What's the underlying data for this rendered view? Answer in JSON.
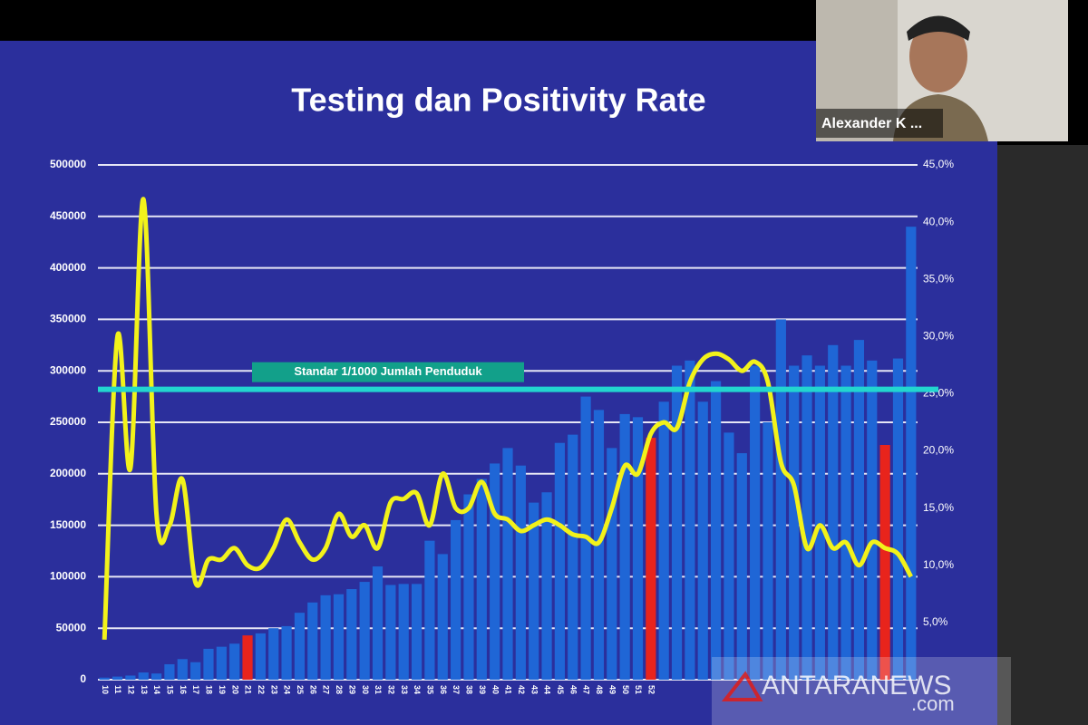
{
  "chart_data": {
    "type": "bar-line",
    "title": "Testing dan Positivity Rate",
    "categories": [
      "10",
      "11",
      "12",
      "13",
      "14",
      "15",
      "16",
      "17",
      "18",
      "19",
      "20",
      "21",
      "22",
      "23",
      "24",
      "25",
      "26",
      "27",
      "28",
      "29",
      "30",
      "31",
      "32",
      "33",
      "34",
      "35",
      "36",
      "37",
      "38",
      "39",
      "40",
      "41",
      "42",
      "43",
      "44",
      "45",
      "46",
      "47",
      "48",
      "49",
      "50",
      "51",
      "52",
      null,
      null,
      null,
      null,
      null,
      null,
      null,
      null,
      null,
      null,
      null,
      null,
      null,
      null,
      null,
      null,
      null,
      null,
      null,
      null
    ],
    "series": [
      {
        "kind": "bar",
        "color": "#1f66d6",
        "highlight_color": "#e8241c",
        "highlight_indices": [
          11,
          42,
          60
        ],
        "values": [
          2000,
          3000,
          4000,
          7000,
          6000,
          15000,
          20000,
          17000,
          30000,
          32000,
          35000,
          43000,
          45000,
          50000,
          52000,
          65000,
          75000,
          82000,
          83000,
          88000,
          95000,
          110000,
          92000,
          93000,
          93000,
          135000,
          122000,
          155000,
          180000,
          195000,
          210000,
          225000,
          208000,
          172000,
          182000,
          230000,
          238000,
          275000,
          262000,
          225000,
          258000,
          255000,
          235000,
          270000,
          305000,
          310000,
          270000,
          290000,
          240000,
          220000,
          305000,
          250000,
          350000,
          305000,
          315000,
          305000,
          325000,
          305000,
          330000,
          310000,
          228000,
          312000,
          440000
        ]
      },
      {
        "kind": "line",
        "color": "#f2f21a",
        "axis": "y2",
        "values": [
          3.5,
          30,
          18.5,
          42,
          14.5,
          13.5,
          17.5,
          8.5,
          10.5,
          10.5,
          11.5,
          10,
          9.8,
          11.5,
          14,
          12,
          10.5,
          11.5,
          14.5,
          12.5,
          13.5,
          11.5,
          15.5,
          15.8,
          16.3,
          13.5,
          18,
          15,
          15,
          17.3,
          14.5,
          14,
          13,
          13.5,
          14,
          13.5,
          12.7,
          12.5,
          12,
          15,
          18.7,
          18,
          21.5,
          22.5,
          22,
          26,
          28,
          28.5,
          28,
          27,
          27.8,
          26,
          19,
          17,
          11.5,
          13.5,
          11.5,
          12,
          10,
          12,
          11.5,
          11,
          9
        ]
      }
    ],
    "reference_line": {
      "value": 282000,
      "label": "Standar 1/1000 Jumlah Penduduk",
      "color": "#22d6cf"
    },
    "ylim": [
      0,
      500000
    ],
    "yticks": [
      0,
      50000,
      100000,
      150000,
      200000,
      250000,
      300000,
      350000,
      400000,
      450000,
      500000
    ],
    "y2lim": [
      0,
      45
    ],
    "y2ticks": [
      {
        "value": 5,
        "label": "5,0%"
      },
      {
        "value": 10,
        "label": "10,0%"
      },
      {
        "value": 15,
        "label": "15,0%"
      },
      {
        "value": 20,
        "label": "20,0%"
      },
      {
        "value": 25,
        "label": "25,0%"
      },
      {
        "value": 30,
        "label": "30,0%"
      },
      {
        "value": 35,
        "label": "35,0%"
      },
      {
        "value": 40,
        "label": "40,0%"
      },
      {
        "value": 45,
        "label": "45,0%"
      }
    ],
    "grid": true
  },
  "overlay": {
    "participant_name": "Alexander K ...",
    "watermark": "ANTARANEWS",
    "watermark_suffix": ".com"
  }
}
